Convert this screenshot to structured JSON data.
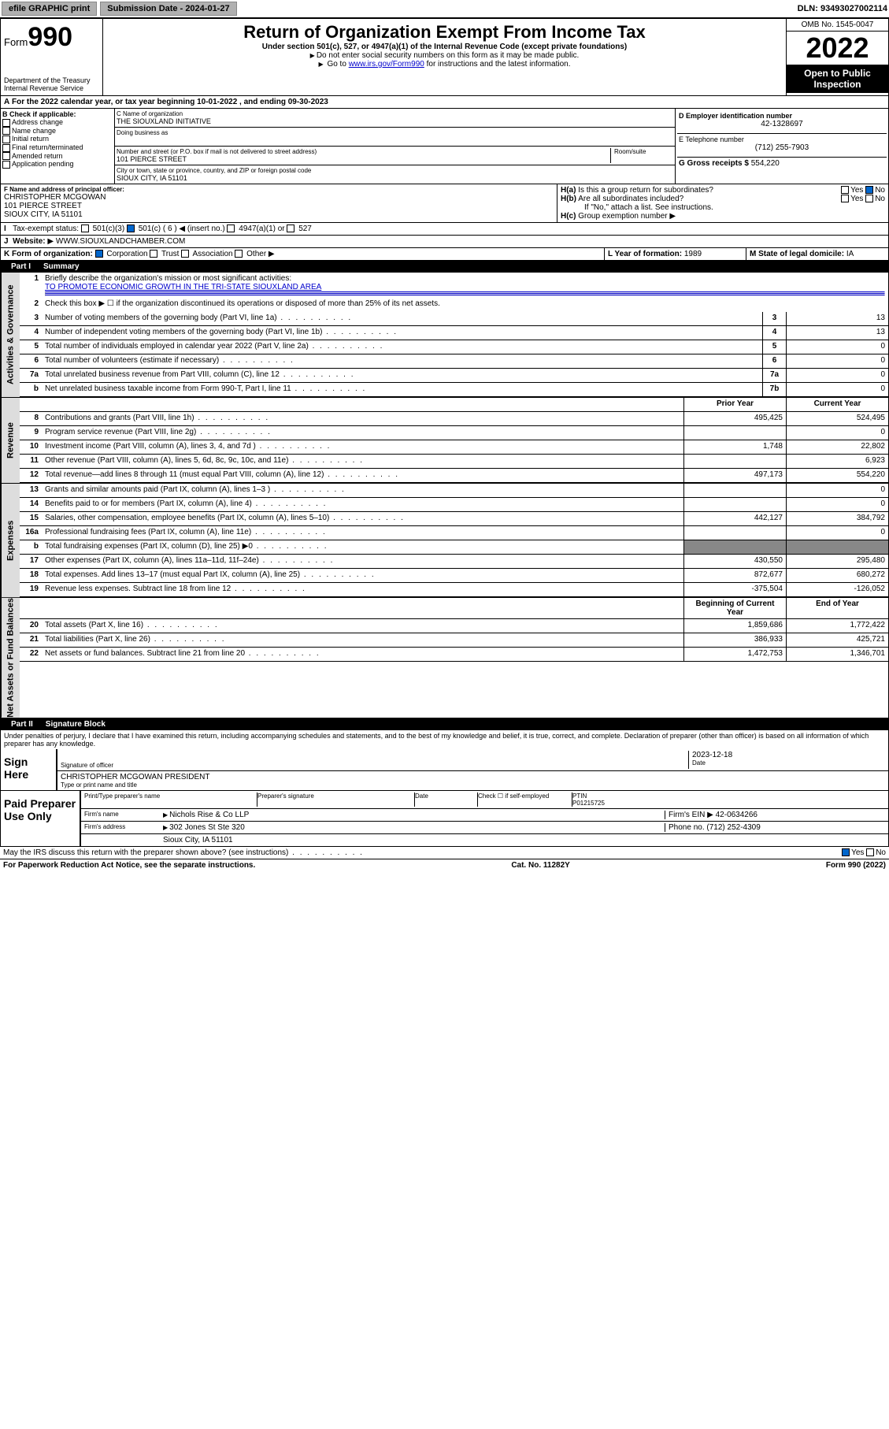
{
  "topbar": {
    "efile": "efile GRAPHIC print",
    "submission": "Submission Date - 2024-01-27",
    "dln": "DLN: 93493027002114"
  },
  "header": {
    "form_prefix": "Form",
    "form_num": "990",
    "dept": "Department of the Treasury",
    "irs": "Internal Revenue Service",
    "title": "Return of Organization Exempt From Income Tax",
    "subtitle": "Under section 501(c), 527, or 4947(a)(1) of the Internal Revenue Code (except private foundations)",
    "note1": "Do not enter social security numbers on this form as it may be made public.",
    "note2_pre": "Go to ",
    "note2_link": "www.irs.gov/Form990",
    "note2_post": " for instructions and the latest information.",
    "omb": "OMB No. 1545-0047",
    "year": "2022",
    "open": "Open to Public Inspection"
  },
  "period": "For the 2022 calendar year, or tax year beginning 10-01-2022   , and ending 09-30-2023",
  "B": {
    "label": "B Check if applicable:",
    "items": [
      "Address change",
      "Name change",
      "Initial return",
      "Final return/terminated",
      "Amended return",
      "Application pending"
    ]
  },
  "C": {
    "name_label": "C Name of organization",
    "name": "THE SIOUXLAND INITIATIVE",
    "dba_label": "Doing business as",
    "street_label": "Number and street (or P.O. box if mail is not delivered to street address)",
    "room_label": "Room/suite",
    "street": "101 PIERCE STREET",
    "city_label": "City or town, state or province, country, and ZIP or foreign postal code",
    "city": "SIOUX CITY, IA  51101"
  },
  "D": {
    "label": "D Employer identification number",
    "value": "42-1328697"
  },
  "E": {
    "label": "E Telephone number",
    "value": "(712) 255-7903"
  },
  "G": {
    "label": "G Gross receipts $",
    "value": "554,220"
  },
  "F": {
    "label": "F Name and address of principal officer:",
    "name": "CHRISTOPHER MCGOWAN",
    "street": "101 PIERCE STREET",
    "city": "SIOUX CITY, IA  51101"
  },
  "H": {
    "a": "Is this a group return for subordinates?",
    "b": "Are all subordinates included?",
    "b_note": "If \"No,\" attach a list. See instructions.",
    "c": "Group exemption number",
    "yes": "Yes",
    "no": "No"
  },
  "I": {
    "label": "Tax-exempt status:",
    "opts": [
      "501(c)(3)",
      "501(c) ( 6 )",
      "(insert no.)",
      "4947(a)(1) or",
      "527"
    ]
  },
  "J": {
    "label": "Website:",
    "value": "WWW.SIOUXLANDCHAMBER.COM"
  },
  "K": {
    "label": "K Form of organization:",
    "opts": [
      "Corporation",
      "Trust",
      "Association",
      "Other"
    ]
  },
  "L": {
    "label": "L Year of formation:",
    "value": "1989"
  },
  "M": {
    "label": "M State of legal domicile:",
    "value": "IA"
  },
  "part1": {
    "label": "Part I",
    "title": "Summary"
  },
  "mission_label": "Briefly describe the organization's mission or most significant activities:",
  "mission": "TO PROMOTE ECONOMIC GROWTH IN THE TRI-STATE SIOUXLAND AREA",
  "line2": "Check this box ▶ ☐ if the organization discontinued its operations or disposed of more than 25% of its net assets.",
  "lines_gov": [
    {
      "n": "3",
      "t": "Number of voting members of the governing body (Part VI, line 1a)",
      "box": "3",
      "v": "13"
    },
    {
      "n": "4",
      "t": "Number of independent voting members of the governing body (Part VI, line 1b)",
      "box": "4",
      "v": "13"
    },
    {
      "n": "5",
      "t": "Total number of individuals employed in calendar year 2022 (Part V, line 2a)",
      "box": "5",
      "v": "0"
    },
    {
      "n": "6",
      "t": "Total number of volunteers (estimate if necessary)",
      "box": "6",
      "v": "0"
    },
    {
      "n": "7a",
      "t": "Total unrelated business revenue from Part VIII, column (C), line 12",
      "box": "7a",
      "v": "0"
    },
    {
      "n": "b",
      "t": "Net unrelated business taxable income from Form 990-T, Part I, line 11",
      "box": "7b",
      "v": "0"
    }
  ],
  "colhdr": {
    "prior": "Prior Year",
    "current": "Current Year"
  },
  "lines_rev": [
    {
      "n": "8",
      "t": "Contributions and grants (Part VIII, line 1h)",
      "p": "495,425",
      "c": "524,495"
    },
    {
      "n": "9",
      "t": "Program service revenue (Part VIII, line 2g)",
      "p": "",
      "c": "0"
    },
    {
      "n": "10",
      "t": "Investment income (Part VIII, column (A), lines 3, 4, and 7d )",
      "p": "1,748",
      "c": "22,802"
    },
    {
      "n": "11",
      "t": "Other revenue (Part VIII, column (A), lines 5, 6d, 8c, 9c, 10c, and 11e)",
      "p": "",
      "c": "6,923"
    },
    {
      "n": "12",
      "t": "Total revenue—add lines 8 through 11 (must equal Part VIII, column (A), line 12)",
      "p": "497,173",
      "c": "554,220"
    }
  ],
  "lines_exp": [
    {
      "n": "13",
      "t": "Grants and similar amounts paid (Part IX, column (A), lines 1–3 )",
      "p": "",
      "c": "0"
    },
    {
      "n": "14",
      "t": "Benefits paid to or for members (Part IX, column (A), line 4)",
      "p": "",
      "c": "0"
    },
    {
      "n": "15",
      "t": "Salaries, other compensation, employee benefits (Part IX, column (A), lines 5–10)",
      "p": "442,127",
      "c": "384,792"
    },
    {
      "n": "16a",
      "t": "Professional fundraising fees (Part IX, column (A), line 11e)",
      "p": "",
      "c": "0"
    },
    {
      "n": "b",
      "t": "Total fundraising expenses (Part IX, column (D), line 25) ▶0",
      "p": "shade",
      "c": "shade"
    },
    {
      "n": "17",
      "t": "Other expenses (Part IX, column (A), lines 11a–11d, 11f–24e)",
      "p": "430,550",
      "c": "295,480"
    },
    {
      "n": "18",
      "t": "Total expenses. Add lines 13–17 (must equal Part IX, column (A), line 25)",
      "p": "872,677",
      "c": "680,272"
    },
    {
      "n": "19",
      "t": "Revenue less expenses. Subtract line 18 from line 12",
      "p": "-375,504",
      "c": "-126,052"
    }
  ],
  "colhdr2": {
    "prior": "Beginning of Current Year",
    "current": "End of Year"
  },
  "lines_net": [
    {
      "n": "20",
      "t": "Total assets (Part X, line 16)",
      "p": "1,859,686",
      "c": "1,772,422"
    },
    {
      "n": "21",
      "t": "Total liabilities (Part X, line 26)",
      "p": "386,933",
      "c": "425,721"
    },
    {
      "n": "22",
      "t": "Net assets or fund balances. Subtract line 21 from line 20",
      "p": "1,472,753",
      "c": "1,346,701"
    }
  ],
  "part2": {
    "label": "Part II",
    "title": "Signature Block"
  },
  "penalty": "Under penalties of perjury, I declare that I have examined this return, including accompanying schedules and statements, and to the best of my knowledge and belief, it is true, correct, and complete. Declaration of preparer (other than officer) is based on all information of which preparer has any knowledge.",
  "sign": {
    "here": "Sign Here",
    "sig_label": "Signature of officer",
    "date_label": "Date",
    "date": "2023-12-18",
    "name": "CHRISTOPHER MCGOWAN  PRESIDENT",
    "name_label": "Type or print name and title"
  },
  "paid": {
    "label": "Paid Preparer Use Only",
    "h1": "Print/Type preparer's name",
    "h2": "Preparer's signature",
    "h3": "Date",
    "h4": "Check ☐ if self-employed",
    "h5": "PTIN",
    "ptin": "P01215725",
    "firm_label": "Firm's name",
    "firm": "Nichols Rise & Co LLP",
    "ein_label": "Firm's EIN",
    "ein": "42-0634266",
    "addr_label": "Firm's address",
    "addr": "302 Jones St Ste 320",
    "city": "Sioux City, IA  51101",
    "phone_label": "Phone no.",
    "phone": "(712) 252-4309"
  },
  "discuss": "May the IRS discuss this return with the preparer shown above? (see instructions)",
  "footer": {
    "pra": "For Paperwork Reduction Act Notice, see the separate instructions.",
    "cat": "Cat. No. 11282Y",
    "form": "Form 990 (2022)"
  },
  "vlabels": {
    "gov": "Activities & Governance",
    "rev": "Revenue",
    "exp": "Expenses",
    "net": "Net Assets or Fund Balances"
  }
}
